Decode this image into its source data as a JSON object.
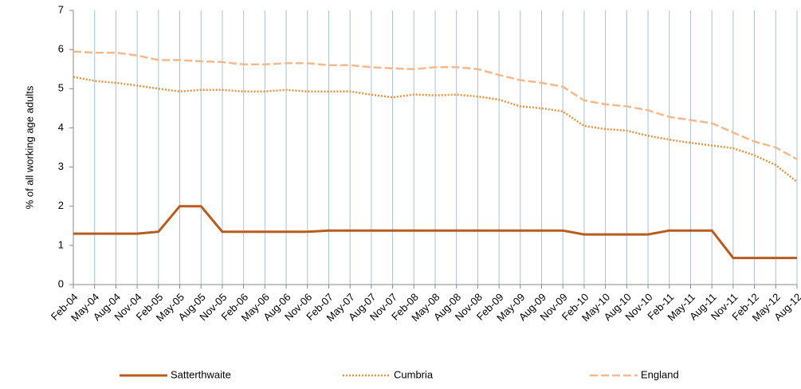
{
  "chart_data": {
    "type": "line",
    "y_label": "% of all working age adults",
    "categories": [
      "Feb-04",
      "May-04",
      "Aug-04",
      "Nov-04",
      "Feb-05",
      "May-05",
      "Aug-05",
      "Nov-05",
      "Feb-06",
      "May-06",
      "Aug-06",
      "Nov-06",
      "Feb-07",
      "May-07",
      "Aug-07",
      "Nov-07",
      "Feb-08",
      "May-08",
      "Aug-08",
      "Nov-08",
      "Feb-09",
      "May-09",
      "Aug-09",
      "Nov-09",
      "Feb-10",
      "May-10",
      "Aug-10",
      "Nov-10",
      "Feb-11",
      "May-11",
      "Aug-11",
      "Nov-11",
      "Feb-12",
      "May-12",
      "Aug-12"
    ],
    "series": [
      {
        "name": "Satterthwaite",
        "color": "#b85c1e",
        "style": "solid",
        "values": [
          1.3,
          1.3,
          1.3,
          1.3,
          1.35,
          2.0,
          2.0,
          1.35,
          1.35,
          1.35,
          1.35,
          1.35,
          1.38,
          1.38,
          1.38,
          1.38,
          1.38,
          1.38,
          1.38,
          1.38,
          1.38,
          1.38,
          1.38,
          1.38,
          1.28,
          1.28,
          1.28,
          1.28,
          1.38,
          1.38,
          1.38,
          0.68,
          0.68,
          0.68,
          0.68
        ]
      },
      {
        "name": "Cumbria",
        "color": "#e8923a",
        "style": "dotted",
        "values": [
          5.3,
          5.2,
          5.15,
          5.08,
          5.0,
          4.93,
          4.97,
          4.97,
          4.93,
          4.93,
          4.97,
          4.93,
          4.93,
          4.93,
          4.85,
          4.78,
          4.85,
          4.83,
          4.85,
          4.8,
          4.72,
          4.55,
          4.5,
          4.42,
          4.05,
          3.97,
          3.93,
          3.8,
          3.7,
          3.62,
          3.55,
          3.48,
          3.3,
          3.05,
          2.62
        ]
      },
      {
        "name": "England",
        "color": "#f5b88a",
        "style": "dashed",
        "values": [
          5.95,
          5.92,
          5.92,
          5.85,
          5.73,
          5.73,
          5.7,
          5.68,
          5.62,
          5.62,
          5.65,
          5.65,
          5.6,
          5.6,
          5.55,
          5.52,
          5.5,
          5.55,
          5.55,
          5.5,
          5.35,
          5.22,
          5.15,
          5.05,
          4.7,
          4.6,
          4.55,
          4.45,
          4.28,
          4.2,
          4.12,
          3.88,
          3.65,
          3.5,
          3.2
        ]
      }
    ],
    "ylim": [
      0,
      7
    ],
    "yticks": [
      0,
      1,
      2,
      3,
      4,
      5,
      6,
      7
    ],
    "grid": true,
    "legend": "bottom"
  }
}
